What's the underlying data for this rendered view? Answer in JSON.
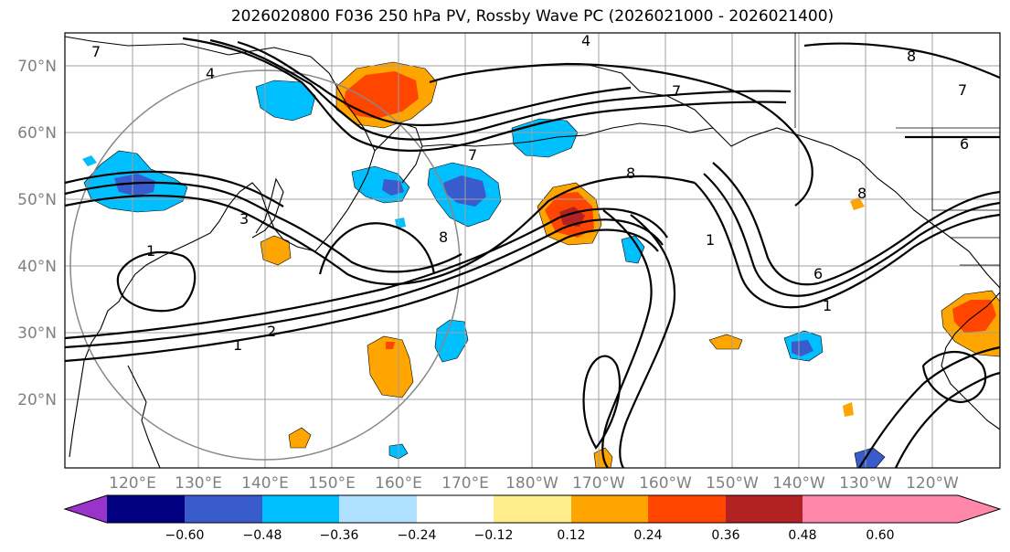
{
  "title": "2026020800 F036 250 hPa PV, Rossby Wave PC (2026021000 - 2026021400)",
  "lat_labels": [
    "70°N",
    "60°N",
    "50°N",
    "40°N",
    "30°N",
    "20°N"
  ],
  "lon_labels": [
    "120°E",
    "130°E",
    "140°E",
    "150°E",
    "160°E",
    "170°E",
    "180°W",
    "170°W",
    "160°W",
    "150°W",
    "140°W",
    "130°W",
    "120°W"
  ],
  "colorbar": {
    "colors": [
      "#9933cc",
      "#000080",
      "#3a5bcc",
      "#00bfff",
      "#b0e0ff",
      "#ffffff",
      "#ffec8b",
      "#ffa500",
      "#ff4500",
      "#b22222",
      "#ff88aa"
    ],
    "tick_labels": [
      "−0.60",
      "−0.48",
      "−0.36",
      "−0.24",
      "−0.12",
      "0.12",
      "0.24",
      "0.36",
      "0.48",
      "0.60"
    ]
  },
  "contour_labels": [
    "1",
    "1",
    "1",
    "1",
    "2",
    "3",
    "4",
    "4",
    "6",
    "6",
    "7",
    "7",
    "7",
    "7",
    "8",
    "8",
    "8",
    "8"
  ],
  "colors": {
    "negative_light": "#00bfff",
    "negative_dark": "#3a5bcc",
    "positive_light": "#ffa500",
    "positive_dark": "#ff4500"
  }
}
